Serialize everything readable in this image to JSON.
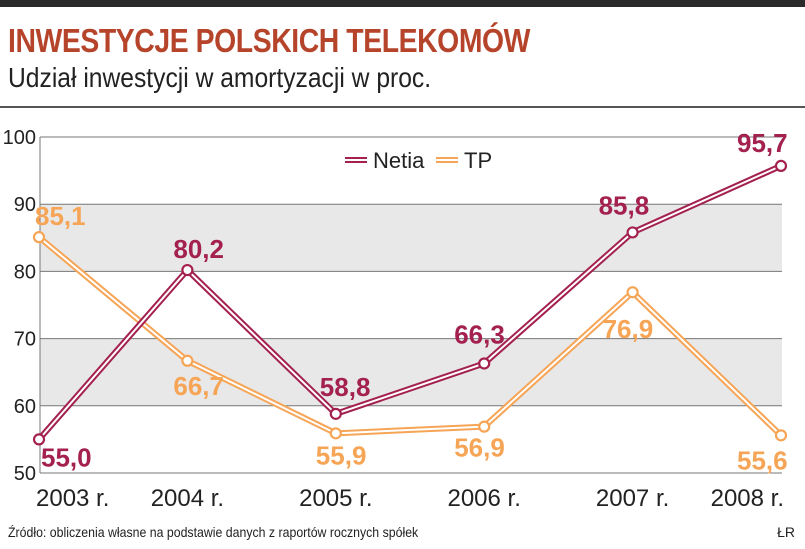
{
  "header": {
    "title": "INWESTYCJE POLSKICH TELEKOMÓW",
    "subtitle": "Udział inwestycji w amortyzacji w proc."
  },
  "footer": {
    "source": "Źródło: obliczenia własne na podstawie danych z raportów rocznych spółek",
    "credit": "ŁR"
  },
  "colors": {
    "netia": "#a3204f",
    "tp": "#f6a556",
    "band": "#e8e8e8",
    "title": "#b5442a"
  },
  "chart_data": {
    "type": "line",
    "title": "INWESTYCJE POLSKICH TELEKOMÓW",
    "subtitle": "Udział inwestycji w amortyzacji w proc.",
    "categories": [
      "2003 r.",
      "2004 r.",
      "2005 r.",
      "2006 r.",
      "2007 r.",
      "2008 r."
    ],
    "ylim": [
      50,
      100
    ],
    "yticks": [
      50,
      60,
      70,
      80,
      90,
      100
    ],
    "legend_position": "top-center",
    "grid": "alternating horizontal bands",
    "series": [
      {
        "name": "Netia",
        "color": "#a3204f",
        "values": [
          55.0,
          80.2,
          58.8,
          66.3,
          85.8,
          95.7
        ],
        "labels": [
          "55,0",
          "80,2",
          "58,8",
          "66,3",
          "85,8",
          "95,7"
        ]
      },
      {
        "name": "TP",
        "color": "#f6a556",
        "values": [
          85.1,
          66.7,
          55.9,
          56.9,
          76.9,
          55.6
        ],
        "labels": [
          "85,1",
          "66,7",
          "55,9",
          "56,9",
          "76,9",
          "55,6"
        ]
      }
    ]
  }
}
